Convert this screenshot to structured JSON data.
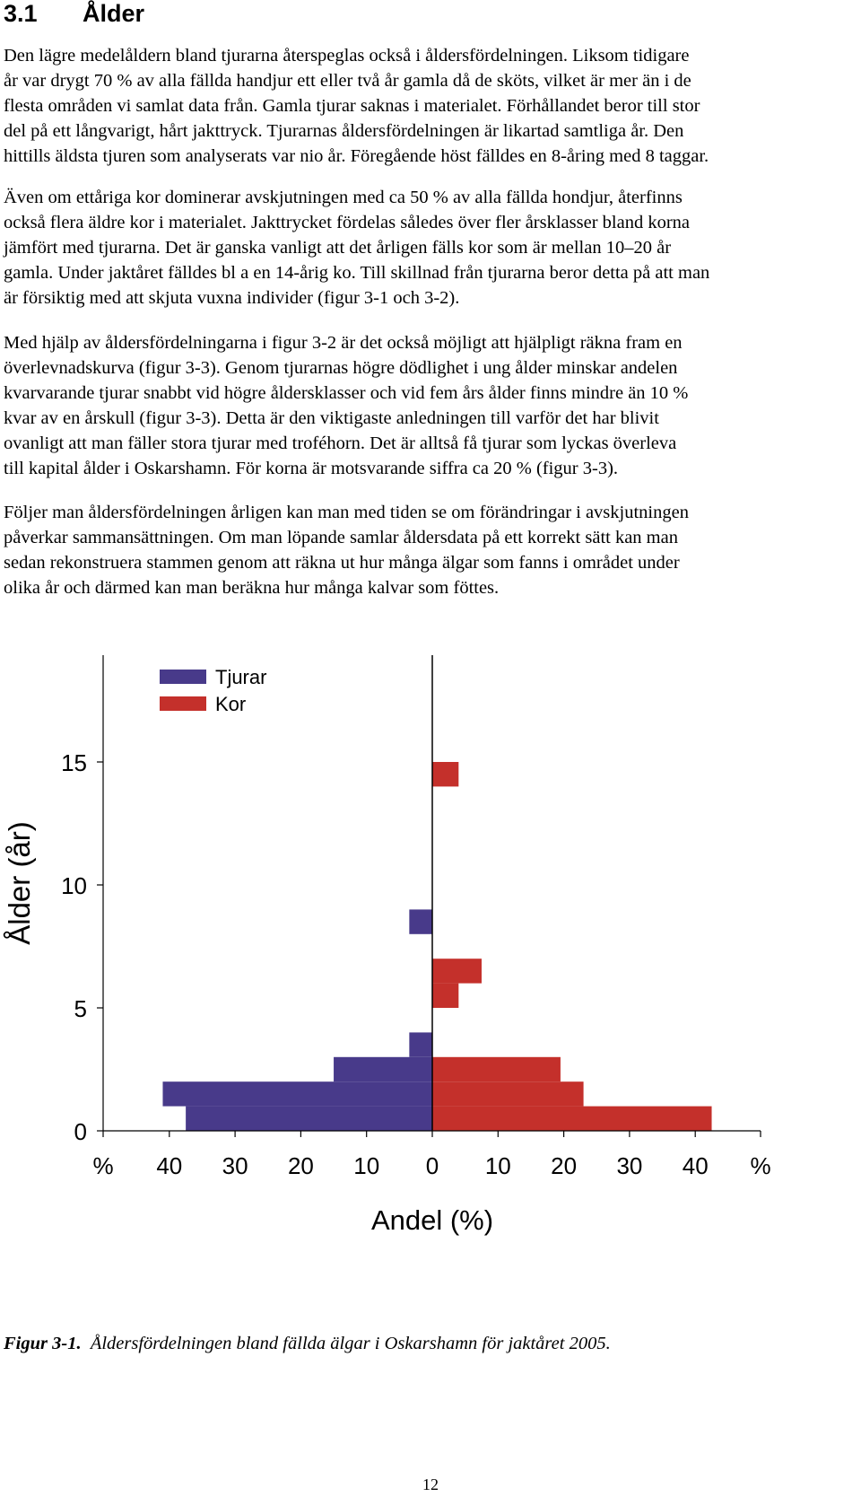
{
  "section": {
    "number": "3.1",
    "title": "Ålder"
  },
  "paragraphs": [
    [
      "Den lägre medelåldern bland tjurarna återspeglas också i åldersfördelningen. Liksom tidigare",
      "år var drygt 70 % av alla fällda handjur ett eller två år gamla då de sköts, vilket är mer än i de",
      "flesta områden vi samlat data från. Gamla tjurar saknas i materialet. Förhållandet beror till stor",
      "del på ett långvarigt, hårt jakttryck. Tjurarnas åldersfördelningen är likartad samtliga år. Den",
      "hittills äldsta tjuren som analyserats var nio år. Föregående höst fälldes en 8-åring med 8 taggar."
    ],
    [
      "Även om ettåriga kor dominerar avskjutningen med ca 50 % av alla fällda hondjur, återfinns",
      "också flera äldre kor i materialet. Jakttrycket fördelas således över fler årsklasser bland korna",
      "jämfört med tjurarna. Det är ganska vanligt att det årligen fälls kor som är mellan 10–20 år",
      "gamla. Under jaktåret fälldes bl a en 14-årig ko. Till skillnad från tjurarna beror detta på att man",
      "är försiktig med att skjuta vuxna individer (figur 3-1 och 3-2)."
    ],
    [
      "Med hjälp av åldersfördelningarna i figur 3-2 är det också möjligt att hjälpligt räkna fram en",
      "överlevnadskurva (figur 3-3). Genom tjurarnas högre dödlighet i ung ålder minskar andelen",
      "kvarvarande tjurar snabbt vid högre åldersklasser och vid fem års ålder finns mindre än 10 %",
      "kvar av en årskull (figur 3-3). Detta är den viktigaste anledningen till varför det har blivit",
      "ovanligt att man fäller stora tjurar med troféhorn. Det är alltså få tjurar som lyckas överleva",
      "till kapital ålder i Oskarshamn. För korna är motsvarande siffra ca 20 % (figur 3-3)."
    ],
    [
      "Följer man åldersfördelningen årligen kan man med tiden se om förändringar i avskjutningen",
      "påverkar sammansättningen. Om man löpande samlar åldersdata på ett korrekt sätt kan man",
      "sedan rekonstruera stammen genom att räkna ut hur många älgar som fanns i området under",
      "olika år och därmed kan man beräkna hur många kalvar som föttes."
    ]
  ],
  "chart_data": {
    "type": "bar",
    "orientation": "horizontal-population-pyramid",
    "xlabel": "Andel (%)",
    "ylabel": "Ålder (år)",
    "xlim": [
      -50,
      50
    ],
    "ylim": [
      0,
      20
    ],
    "x_ticks": [
      {
        "value": -50,
        "label": "%"
      },
      {
        "value": -40,
        "label": "40"
      },
      {
        "value": -30,
        "label": "30"
      },
      {
        "value": -20,
        "label": "20"
      },
      {
        "value": -10,
        "label": "10"
      },
      {
        "value": 0,
        "label": "0"
      },
      {
        "value": 10,
        "label": "10"
      },
      {
        "value": 20,
        "label": "20"
      },
      {
        "value": 30,
        "label": "30"
      },
      {
        "value": 40,
        "label": "40"
      },
      {
        "value": 50,
        "label": "%"
      }
    ],
    "y_ticks": [
      0,
      5,
      10,
      15,
      20
    ],
    "legend_position": "top-left",
    "categories": [
      "0.5",
      "1.5",
      "2.5",
      "3.5",
      "4.5",
      "5.5",
      "6.5",
      "7.5",
      "8.5",
      "9.5",
      "10.5",
      "11.5",
      "12.5",
      "13.5",
      "14.5"
    ],
    "series": [
      {
        "name": "Tjurar",
        "side": "left",
        "color": "#483a8a",
        "values": [
          37.5,
          41,
          15,
          3.5,
          0,
          0,
          0,
          0,
          3.5,
          0,
          0,
          0,
          0,
          0,
          0
        ]
      },
      {
        "name": "Kor",
        "side": "right",
        "color": "#c4302b",
        "values": [
          42.5,
          23,
          19.5,
          0,
          0,
          4,
          7.5,
          0,
          0,
          0,
          0,
          0,
          0,
          0,
          4
        ]
      }
    ]
  },
  "caption": {
    "label": "Figur 3-1.",
    "text": "Åldersfördelningen bland fällda älgar i Oskarshamn för jaktåret 2005."
  },
  "page_number": "12"
}
